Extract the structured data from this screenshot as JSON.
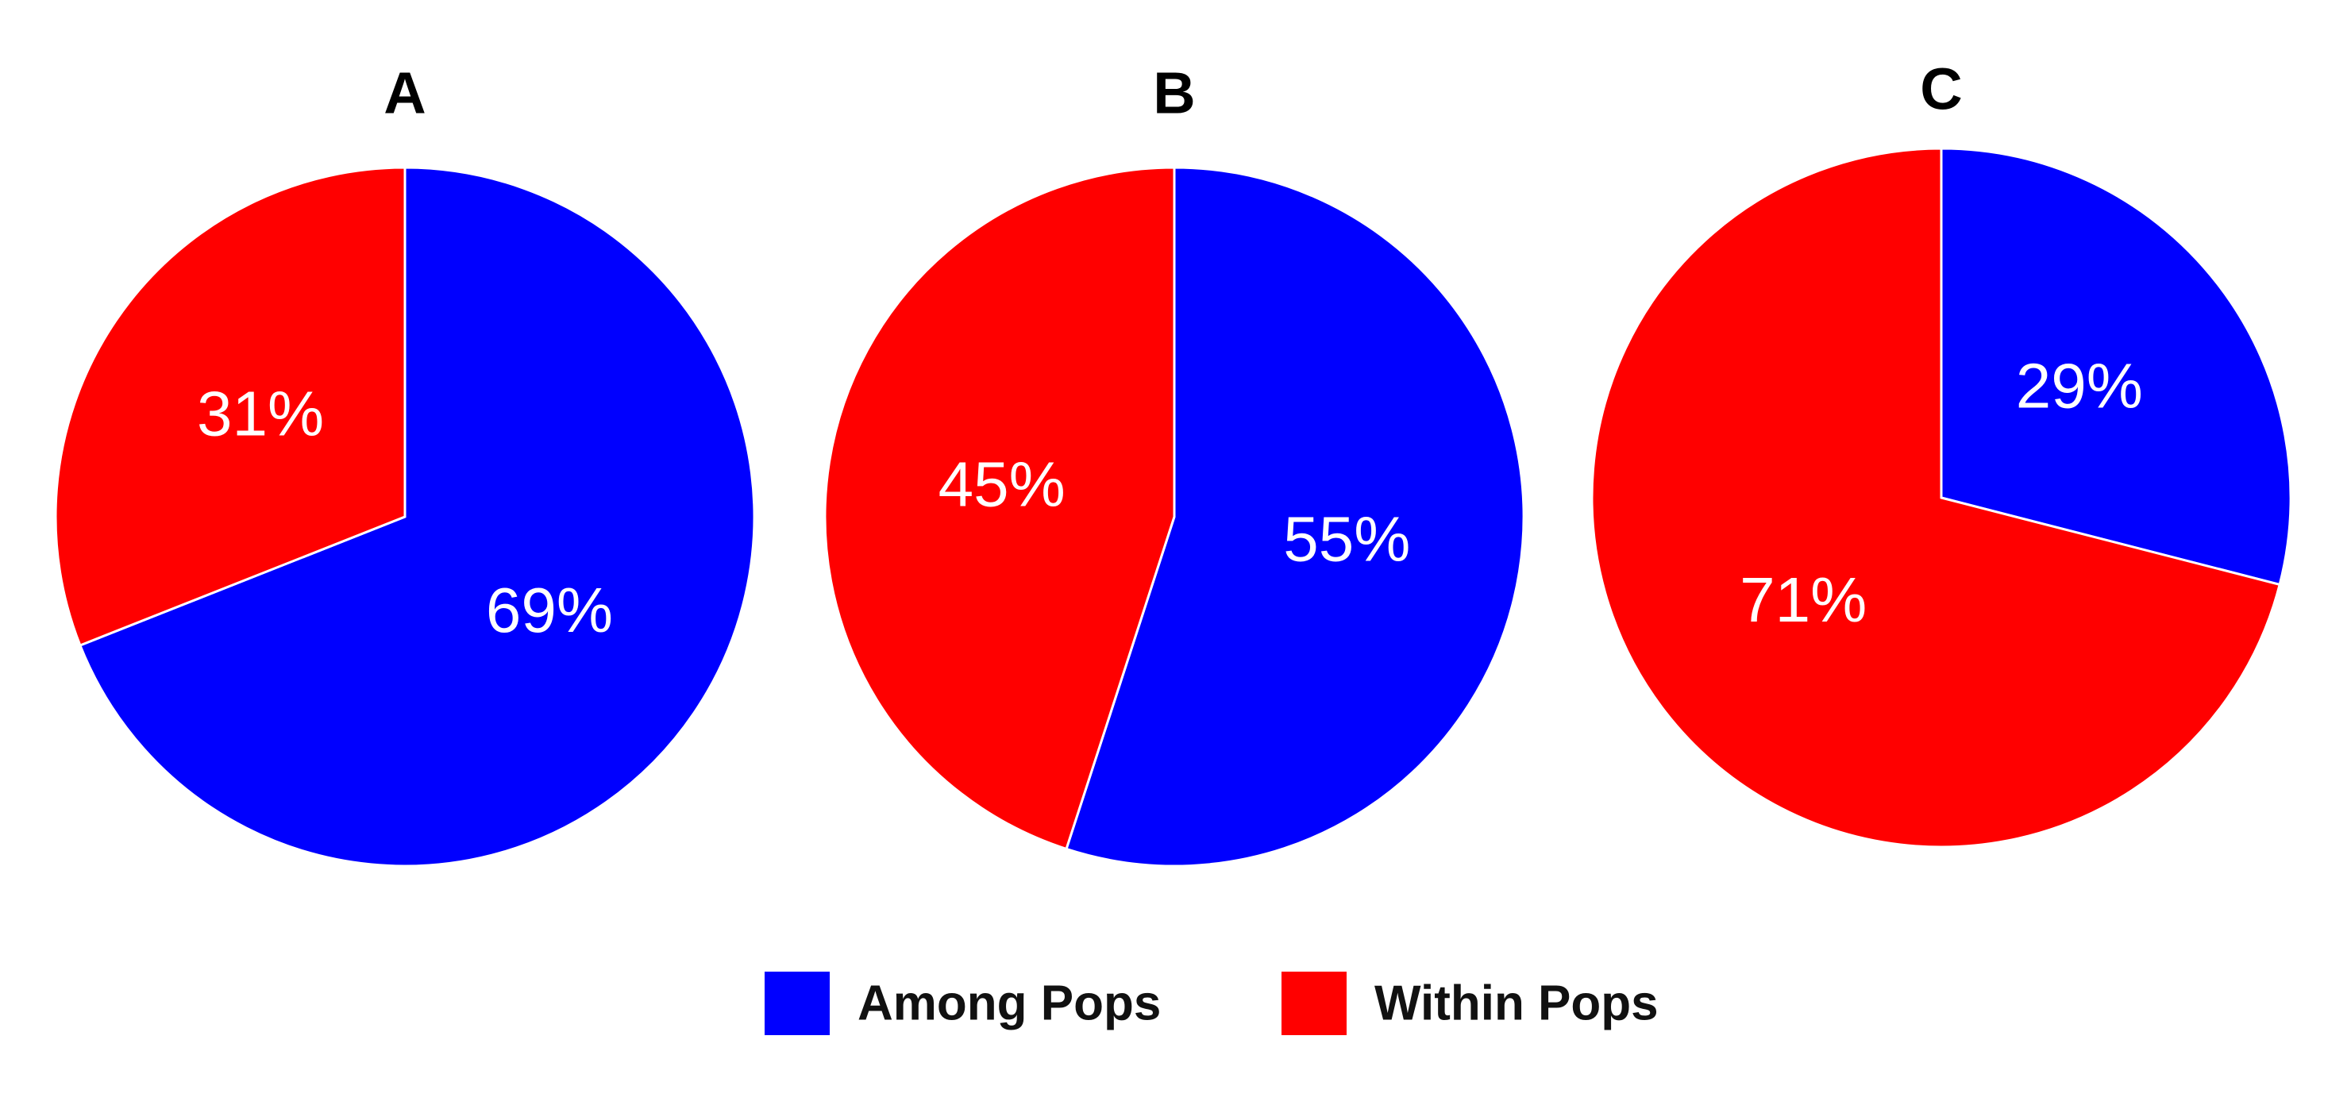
{
  "legend": {
    "position": "bottom",
    "items": [
      {
        "name": "Among Pops",
        "color": "#0000ff"
      },
      {
        "name": "Within Pops",
        "color": "#ff0000"
      }
    ]
  },
  "chart_data": [
    {
      "type": "pie",
      "title": "A",
      "values": [
        69,
        31
      ],
      "value_labels": [
        "69%",
        "31%"
      ]
    },
    {
      "type": "pie",
      "title": "B",
      "values": [
        55,
        45
      ],
      "value_labels": [
        "55%",
        "45%"
      ]
    },
    {
      "type": "pie",
      "title": "C",
      "values": [
        29,
        71
      ],
      "value_labels": [
        "29%",
        "71%"
      ]
    }
  ]
}
